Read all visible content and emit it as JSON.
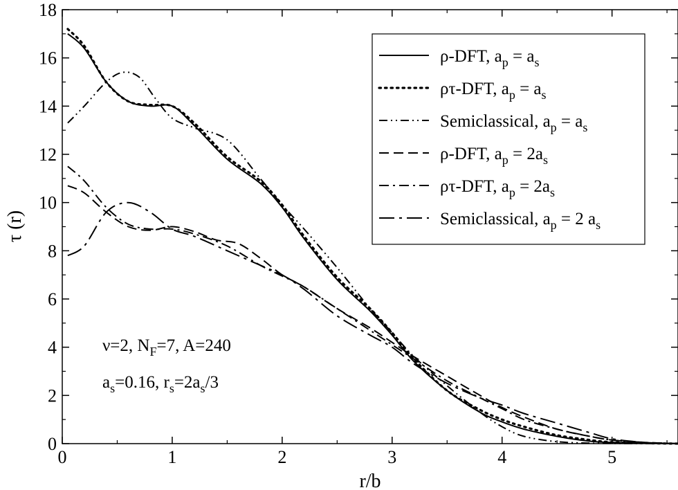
{
  "chart_data": {
    "type": "line",
    "xlabel": "r/b",
    "ylabel": "τ (r)",
    "xlim": [
      0,
      5.6
    ],
    "ylim": [
      0,
      18
    ],
    "xticks": [
      "0",
      "1",
      "2",
      "3",
      "4",
      "5"
    ],
    "yticks": [
      "0",
      "2",
      "4",
      "6",
      "8",
      "10",
      "12",
      "14",
      "16",
      "18"
    ],
    "grid": false,
    "legend_position": "top-right",
    "annotations": [
      {
        "main": "ν=2, N",
        "sub1": "F",
        "rest1": "=7, A=240"
      },
      {
        "main": "a",
        "sub1": "s",
        "rest1": "=0.16, r",
        "sub2": "s",
        "rest2": "=2a",
        "sub3": "s",
        "rest3": "/3"
      }
    ],
    "series": [
      {
        "name": "ρ-DFT, a_p = a_s",
        "label": {
          "pre": "ρ-DFT, a",
          "sub1": "p",
          "mid": " = a",
          "sub2": "s"
        },
        "style": "solid",
        "x": [
          0.05,
          0.2,
          0.4,
          0.6,
          0.8,
          1.0,
          1.2,
          1.5,
          1.8,
          2.0,
          2.2,
          2.5,
          2.8,
          3.0,
          3.2,
          3.5,
          3.8,
          4.0,
          4.2,
          4.5,
          4.8,
          5.0,
          5.3,
          5.6
        ],
        "y": [
          17.0,
          16.4,
          15.0,
          14.2,
          14.0,
          14.0,
          13.2,
          11.8,
          10.8,
          9.8,
          8.5,
          6.8,
          5.5,
          4.5,
          3.4,
          2.2,
          1.3,
          0.9,
          0.6,
          0.3,
          0.1,
          0.05,
          0.02,
          0.0
        ]
      },
      {
        "name": "ρτ-DFT, a_p = a_s",
        "label": {
          "pre": "ρτ-DFT, a",
          "sub1": "p",
          "mid": " = a",
          "sub2": "s"
        },
        "style": "dotted",
        "x": [
          0.05,
          0.2,
          0.4,
          0.6,
          0.8,
          1.0,
          1.2,
          1.5,
          1.8,
          2.0,
          2.2,
          2.5,
          2.8,
          3.0,
          3.2,
          3.5,
          3.8,
          4.0,
          4.2,
          4.5,
          4.8,
          5.0,
          5.3,
          5.6
        ],
        "y": [
          17.2,
          16.5,
          15.0,
          14.2,
          14.05,
          14.0,
          13.3,
          11.9,
          10.9,
          9.9,
          8.6,
          6.9,
          5.6,
          4.6,
          3.5,
          2.2,
          1.4,
          1.0,
          0.7,
          0.35,
          0.15,
          0.06,
          0.02,
          0.0
        ]
      },
      {
        "name": "Semiclassical, a_p = a_s",
        "label": {
          "pre": "Semiclassical, a",
          "sub1": "p",
          "mid": " = a",
          "sub2": "s"
        },
        "style": "dash-dot-dot",
        "x": [
          0.05,
          0.2,
          0.4,
          0.55,
          0.7,
          0.85,
          1.0,
          1.2,
          1.5,
          1.8,
          2.0,
          2.2,
          2.5,
          2.8,
          3.0,
          3.2,
          3.5,
          3.8,
          4.0,
          4.2,
          4.5,
          4.8,
          5.0,
          5.3,
          5.6
        ],
        "y": [
          13.3,
          14.0,
          15.0,
          15.4,
          15.2,
          14.3,
          13.5,
          13.1,
          12.6,
          11.0,
          9.9,
          8.9,
          7.3,
          5.6,
          4.6,
          3.6,
          2.4,
          1.3,
          0.7,
          0.3,
          0.08,
          0.02,
          0.01,
          0.0,
          0.0
        ]
      },
      {
        "name": "ρ-DFT, a_p = 2a_s",
        "label": {
          "pre": "ρ-DFT, a",
          "sub1": "p",
          "mid": " = 2a",
          "sub2": "s"
        },
        "style": "dashed",
        "x": [
          0.05,
          0.2,
          0.4,
          0.6,
          0.8,
          1.0,
          1.2,
          1.4,
          1.6,
          1.8,
          2.0,
          2.2,
          2.5,
          2.8,
          3.0,
          3.2,
          3.5,
          3.8,
          4.0,
          4.2,
          4.5,
          4.8,
          5.0,
          5.3,
          5.6
        ],
        "y": [
          10.7,
          10.4,
          9.6,
          9.0,
          8.85,
          9.0,
          8.8,
          8.45,
          8.3,
          7.7,
          7.0,
          6.5,
          5.6,
          4.8,
          4.2,
          3.6,
          2.8,
          2.0,
          1.5,
          1.1,
          0.6,
          0.3,
          0.15,
          0.05,
          0.0
        ]
      },
      {
        "name": "ρτ-DFT, a_p = 2a_s",
        "label": {
          "pre": "ρτ-DFT, a",
          "sub1": "p",
          "mid": " = 2a",
          "sub2": "s"
        },
        "style": "dash-dot",
        "x": [
          0.05,
          0.2,
          0.4,
          0.6,
          0.8,
          1.0,
          1.2,
          1.5,
          1.8,
          2.0,
          2.2,
          2.5,
          2.8,
          3.0,
          3.2,
          3.5,
          3.8,
          4.0,
          4.2,
          4.5,
          4.8,
          5.0,
          5.3,
          5.6
        ],
        "y": [
          11.5,
          10.9,
          9.8,
          9.1,
          8.9,
          8.9,
          8.7,
          8.2,
          7.4,
          6.95,
          6.5,
          5.6,
          4.7,
          4.1,
          3.5,
          2.6,
          1.9,
          1.45,
          1.0,
          0.6,
          0.3,
          0.15,
          0.05,
          0.0
        ]
      },
      {
        "name": "Semiclassical, a_p = 2 a_s",
        "label": {
          "pre": "Semiclassical, a",
          "sub1": "p",
          "mid": " = 2 a",
          "sub2": "s"
        },
        "style": "long-dash-dot",
        "x": [
          0.05,
          0.2,
          0.4,
          0.6,
          0.8,
          1.0,
          1.2,
          1.5,
          1.8,
          2.0,
          2.2,
          2.5,
          2.8,
          3.0,
          3.2,
          3.5,
          3.8,
          4.0,
          4.2,
          4.5,
          4.8,
          5.0,
          5.3,
          5.6
        ],
        "y": [
          7.8,
          8.2,
          9.6,
          10.0,
          9.6,
          8.9,
          8.6,
          8.0,
          7.4,
          7.0,
          6.4,
          5.3,
          4.5,
          4.0,
          3.3,
          2.5,
          1.9,
          1.6,
          1.25,
          0.85,
          0.45,
          0.2,
          0.05,
          0.0
        ]
      }
    ]
  }
}
